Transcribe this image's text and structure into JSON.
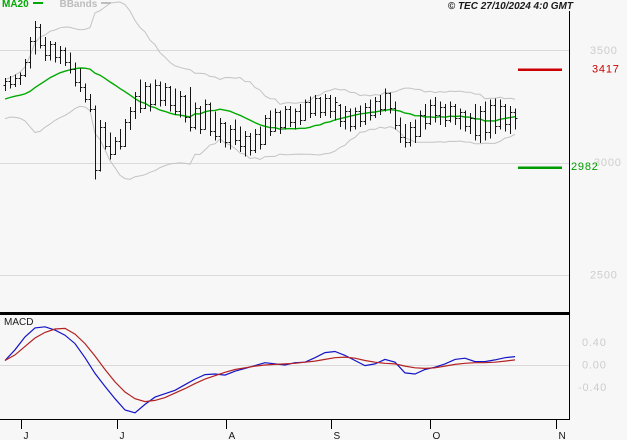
{
  "header": {
    "copyright": "© TEC 27/10/2024 4:0 GMT"
  },
  "legend": [
    {
      "label": "MA20",
      "color": "#00aa00"
    },
    {
      "label": "BBands",
      "color": "#bdbdbd"
    }
  ],
  "palette": {
    "grid": "#dadada",
    "axis_text": "#cdcdcd",
    "bar": "#141414",
    "border": "#000000",
    "month_text": "#141414"
  },
  "x_axis": {
    "months": [
      {
        "label": "J",
        "index": 3.2
      },
      {
        "label": "J",
        "index": 22.4
      },
      {
        "label": "A",
        "index": 44.2
      },
      {
        "label": "S",
        "index": 65.2
      },
      {
        "label": "O",
        "index": 85
      },
      {
        "label": "N",
        "index": 110.2
      }
    ]
  },
  "chart_data": [
    {
      "type": "ohlc",
      "panel": "price",
      "ylim": [
        2330,
        3680
      ],
      "grid": {
        "values": [
          3500,
          3000,
          2500
        ],
        "labels": [
          "3500",
          "3000",
          "2500"
        ]
      },
      "levels": [
        {
          "value": 3417,
          "label": "3417",
          "color": "#cc0000"
        },
        {
          "value": 2982,
          "label": "2982",
          "color": "#009b00"
        }
      ],
      "indicators": {
        "ma_period": 20,
        "bb_mult": 2,
        "ma_color": "#00aa00",
        "bb_color": "#c3c3c3"
      },
      "warmup_closes": [
        3180,
        3220,
        3260,
        3300,
        3340,
        3310,
        3270,
        3230,
        3200,
        3220,
        3250,
        3280,
        3310,
        3290,
        3260,
        3280,
        3300,
        3320,
        3330,
        3340
      ],
      "bars": [
        [
          3345,
          3378,
          3318,
          3362
        ],
        [
          3362,
          3386,
          3330,
          3352
        ],
        [
          3352,
          3392,
          3336,
          3378
        ],
        [
          3378,
          3402,
          3345,
          3390
        ],
        [
          3390,
          3462,
          3382,
          3448
        ],
        [
          3448,
          3560,
          3420,
          3540
        ],
        [
          3540,
          3630,
          3482,
          3605
        ],
        [
          3605,
          3618,
          3508,
          3525
        ],
        [
          3525,
          3560,
          3452,
          3480
        ],
        [
          3480,
          3542,
          3455,
          3528
        ],
        [
          3528,
          3538,
          3445,
          3470
        ],
        [
          3470,
          3520,
          3440,
          3500
        ],
        [
          3500,
          3512,
          3430,
          3448
        ],
        [
          3448,
          3490,
          3398,
          3415
        ],
        [
          3415,
          3445,
          3340,
          3360
        ],
        [
          3360,
          3420,
          3315,
          3338
        ],
        [
          3338,
          3352,
          3268,
          3285
        ],
        [
          3285,
          3305,
          3225,
          3240
        ],
        [
          3240,
          3255,
          2925,
          2965
        ],
        [
          2965,
          3190,
          2960,
          3160
        ],
        [
          3160,
          3180,
          3058,
          3075
        ],
        [
          3075,
          3135,
          3015,
          3040
        ],
        [
          3040,
          3115,
          3035,
          3098
        ],
        [
          3098,
          3150,
          3058,
          3072
        ],
        [
          3072,
          3195,
          3070,
          3180
        ],
        [
          3180,
          3248,
          3145,
          3232
        ],
        [
          3232,
          3315,
          3195,
          3298
        ],
        [
          3298,
          3370,
          3220,
          3245
        ],
        [
          3245,
          3360,
          3240,
          3340
        ],
        [
          3340,
          3352,
          3228,
          3260
        ],
        [
          3260,
          3370,
          3255,
          3348
        ],
        [
          3348,
          3362,
          3250,
          3280
        ],
        [
          3280,
          3355,
          3252,
          3335
        ],
        [
          3335,
          3342,
          3228,
          3255
        ],
        [
          3255,
          3330,
          3212,
          3230
        ],
        [
          3230,
          3318,
          3200,
          3295
        ],
        [
          3295,
          3302,
          3178,
          3205
        ],
        [
          3205,
          3338,
          3138,
          3160
        ],
        [
          3160,
          3268,
          3148,
          3245
        ],
        [
          3245,
          3252,
          3128,
          3150
        ],
        [
          3150,
          3282,
          3148,
          3262
        ],
        [
          3262,
          3268,
          3118,
          3140
        ],
        [
          3140,
          3228,
          3098,
          3120
        ],
        [
          3120,
          3198,
          3088,
          3178
        ],
        [
          3178,
          3182,
          3068,
          3090
        ],
        [
          3090,
          3168,
          3058,
          3148
        ],
        [
          3148,
          3192,
          3078,
          3102
        ],
        [
          3102,
          3162,
          3048,
          3072
        ],
        [
          3072,
          3140,
          3028,
          3118
        ],
        [
          3118,
          3132,
          3032,
          3055
        ],
        [
          3055,
          3150,
          3042,
          3128
        ],
        [
          3128,
          3162,
          3058,
          3082
        ],
        [
          3082,
          3212,
          3078,
          3198
        ],
        [
          3198,
          3232,
          3118,
          3142
        ],
        [
          3142,
          3242,
          3138,
          3225
        ],
        [
          3225,
          3232,
          3128,
          3158
        ],
        [
          3158,
          3252,
          3148,
          3238
        ],
        [
          3238,
          3252,
          3158,
          3180
        ],
        [
          3180,
          3242,
          3148,
          3228
        ],
        [
          3228,
          3262,
          3168,
          3192
        ],
        [
          3192,
          3282,
          3188,
          3268
        ],
        [
          3268,
          3295,
          3198,
          3222
        ],
        [
          3222,
          3302,
          3208,
          3288
        ],
        [
          3288,
          3292,
          3198,
          3225
        ],
        [
          3225,
          3305,
          3208,
          3290
        ],
        [
          3290,
          3302,
          3198,
          3228
        ],
        [
          3228,
          3292,
          3188,
          3268
        ],
        [
          3255,
          3262,
          3158,
          3185
        ],
        [
          3185,
          3252,
          3148,
          3232
        ],
        [
          3232,
          3242,
          3138,
          3162
        ],
        [
          3162,
          3245,
          3148,
          3228
        ],
        [
          3228,
          3255,
          3158,
          3185
        ],
        [
          3185,
          3265,
          3168,
          3248
        ],
        [
          3248,
          3282,
          3188,
          3212
        ],
        [
          3212,
          3292,
          3198,
          3275
        ],
        [
          3275,
          3302,
          3212,
          3238
        ],
        [
          3238,
          3330,
          3228,
          3312
        ],
        [
          3312,
          3312,
          3218,
          3245
        ],
        [
          3245,
          3272,
          3148,
          3168
        ],
        [
          3168,
          3202,
          3088,
          3112
        ],
        [
          3112,
          3172,
          3068,
          3092
        ],
        [
          3092,
          3182,
          3072,
          3158
        ],
        [
          3158,
          3192,
          3088,
          3118
        ],
        [
          3118,
          3232,
          3115,
          3212
        ],
        [
          3212,
          3262,
          3148,
          3178
        ],
        [
          3178,
          3282,
          3168,
          3258
        ],
        [
          3258,
          3292,
          3178,
          3212
        ],
        [
          3212,
          3272,
          3168,
          3248
        ],
        [
          3248,
          3262,
          3158,
          3188
        ],
        [
          3188,
          3272,
          3178,
          3252
        ],
        [
          3252,
          3262,
          3168,
          3198
        ],
        [
          3198,
          3242,
          3148,
          3225
        ],
        [
          3225,
          3232,
          3138,
          3162
        ],
        [
          3162,
          3222,
          3128,
          3198
        ],
        [
          3198,
          3262,
          3098,
          3125
        ],
        [
          3125,
          3252,
          3088,
          3228
        ],
        [
          3228,
          3272,
          3098,
          3135
        ],
        [
          3135,
          3282,
          3108,
          3258
        ],
        [
          3258,
          3285,
          3128,
          3165
        ],
        [
          3165,
          3282,
          3148,
          3252
        ],
        [
          3252,
          3262,
          3138,
          3172
        ],
        [
          3172,
          3252,
          3128,
          3225
        ],
        [
          3225,
          3242,
          3148,
          3198
        ]
      ]
    },
    {
      "type": "line",
      "panel": "macd",
      "label": "MACD",
      "ylim": [
        -0.978,
        0.889
      ],
      "grid": {
        "values": [
          0
        ]
      },
      "axis_labels": [
        {
          "value": 0.4,
          "label": "0.40"
        },
        {
          "value": 0,
          "label": "0.00"
        },
        {
          "value": -0.4,
          "label": "-0.40"
        }
      ],
      "x_index_step": 2,
      "series": [
        {
          "name": "MACD",
          "color": "#1414c8",
          "values": [
            0.08,
            0.27,
            0.5,
            0.66,
            0.68,
            0.62,
            0.53,
            0.38,
            0.13,
            -0.15,
            -0.38,
            -0.6,
            -0.8,
            -0.85,
            -0.7,
            -0.57,
            -0.51,
            -0.45,
            -0.35,
            -0.25,
            -0.17,
            -0.16,
            -0.18,
            -0.11,
            -0.06,
            -0.01,
            0.04,
            0.02,
            0.0,
            0.04,
            0.05,
            0.13,
            0.22,
            0.24,
            0.17,
            0.08,
            -0.01,
            0.02,
            0.1,
            0.05,
            -0.14,
            -0.16,
            -0.08,
            -0.04,
            0.02,
            0.1,
            0.12,
            0.06,
            0.06,
            0.09,
            0.13,
            0.15
          ]
        },
        {
          "name": "Signal",
          "color": "#b42222",
          "values": [
            0.08,
            0.18,
            0.33,
            0.48,
            0.58,
            0.64,
            0.65,
            0.55,
            0.38,
            0.16,
            -0.08,
            -0.3,
            -0.48,
            -0.6,
            -0.65,
            -0.63,
            -0.58,
            -0.5,
            -0.42,
            -0.33,
            -0.25,
            -0.19,
            -0.13,
            -0.08,
            -0.05,
            -0.02,
            0.0,
            0.01,
            0.02,
            0.03,
            0.05,
            0.07,
            0.1,
            0.13,
            0.14,
            0.12,
            0.08,
            0.05,
            0.03,
            0.02,
            -0.02,
            -0.05,
            -0.06,
            -0.05,
            -0.02,
            0.01,
            0.03,
            0.04,
            0.04,
            0.05,
            0.07,
            0.09
          ]
        }
      ]
    }
  ]
}
